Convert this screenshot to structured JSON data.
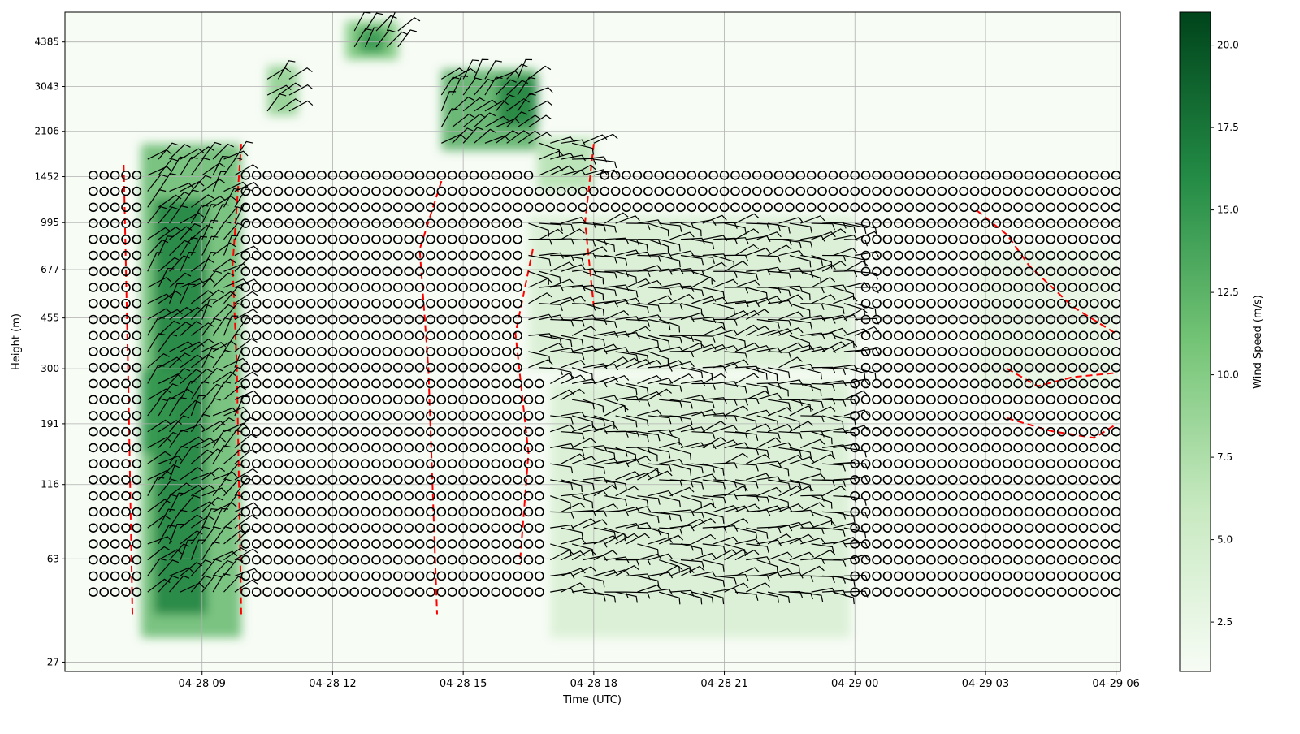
{
  "chart_data": {
    "type": "heatmap",
    "title": "",
    "xlabel": "Time (UTC)",
    "ylabel": "Height (m)",
    "x_start": "04-28 06:00",
    "x_end": "04-29 06:00",
    "x_tick_labels": [
      "04-28 09",
      "04-28 12",
      "04-28 15",
      "04-28 18",
      "04-28 21",
      "04-29 00",
      "04-29 03",
      "04-29 06"
    ],
    "x_tick_hours": [
      3,
      6,
      9,
      12,
      15,
      18,
      21,
      24
    ],
    "y_tick_labels": [
      "27",
      "63",
      "116",
      "191",
      "300",
      "455",
      "677",
      "995",
      "1452",
      "2106",
      "3043",
      "4385"
    ],
    "y_scale": "log",
    "grid": true,
    "colorbar": {
      "label": "Wind Speed (m/s)",
      "colormap": "Greens",
      "range": [
        1,
        21
      ],
      "ticks": [
        2.5,
        5.0,
        7.5,
        10.0,
        12.5,
        15.0,
        17.5,
        20.0
      ],
      "tick_labels": [
        "2.5",
        "5.0",
        "7.5",
        "10.0",
        "12.5",
        "15.0",
        "17.5",
        "20.0"
      ]
    },
    "wind_speed_regions": [
      {
        "t0": 1.6,
        "t1": 3.9,
        "h0": 33,
        "h1": 1900,
        "speed": 9
      },
      {
        "t0": 1.9,
        "t1": 3.1,
        "h0": 40,
        "h1": 1200,
        "speed": 14
      },
      {
        "t0": 1.6,
        "t1": 2.4,
        "h0": 150,
        "h1": 300,
        "speed": 12
      },
      {
        "t0": 4.5,
        "t1": 5.2,
        "h0": 2400,
        "h1": 3600,
        "speed": 7
      },
      {
        "t0": 6.3,
        "t1": 7.5,
        "h0": 3800,
        "h1": 5200,
        "speed": 8
      },
      {
        "t0": 6.6,
        "t1": 7.2,
        "h0": 4000,
        "h1": 4900,
        "speed": 12
      },
      {
        "t0": 8.5,
        "t1": 10.7,
        "h0": 1800,
        "h1": 3500,
        "speed": 10
      },
      {
        "t0": 9.8,
        "t1": 10.7,
        "h0": 2200,
        "h1": 3300,
        "speed": 14
      },
      {
        "t0": 10.7,
        "t1": 12.0,
        "h0": 1300,
        "h1": 2000,
        "speed": 5
      },
      {
        "t0": 10.5,
        "t1": 18.0,
        "h0": 300,
        "h1": 1050,
        "speed": 3
      },
      {
        "t0": 11.0,
        "t1": 17.9,
        "h0": 33,
        "h1": 270,
        "speed": 3
      },
      {
        "t0": 20.8,
        "t1": 24.0,
        "h0": 250,
        "h1": 800,
        "speed": 2
      }
    ],
    "calm_marker": "circle (calm)",
    "dashed_contour_color": "#ff0000"
  }
}
